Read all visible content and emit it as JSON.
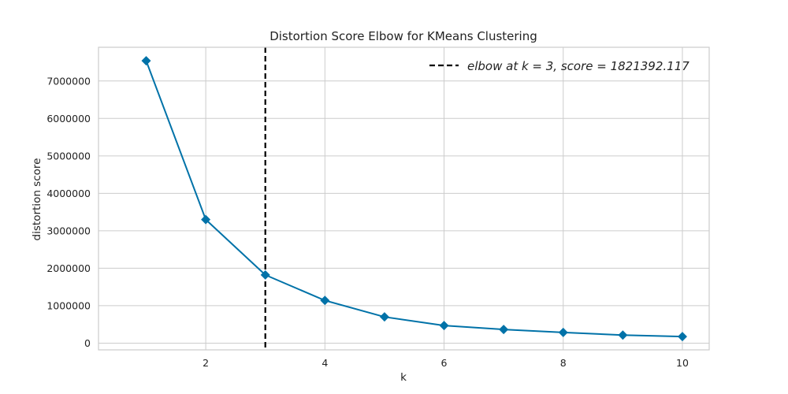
{
  "chart_data": {
    "type": "line",
    "title": "Distortion Score Elbow for KMeans Clustering",
    "xlabel": "k",
    "ylabel": "distortion score",
    "x": [
      1,
      2,
      3,
      4,
      5,
      6,
      7,
      8,
      9,
      10
    ],
    "series": [
      {
        "values": [
          7540000,
          3300000,
          1821392.117,
          1140000,
          700000,
          470000,
          365000,
          285000,
          215000,
          175000
        ],
        "color": "#0072a8",
        "marker": "diamond"
      }
    ],
    "xlim": [
      0.2,
      10.45
    ],
    "ylim": [
      -180000,
      7900000
    ],
    "xticks": [
      2,
      4,
      6,
      8,
      10
    ],
    "xtick_labels": [
      "2",
      "4",
      "6",
      "8",
      "10"
    ],
    "yticks": [
      0,
      1000000,
      2000000,
      3000000,
      4000000,
      5000000,
      6000000,
      7000000
    ],
    "ytick_labels": [
      "0",
      "1000000",
      "2000000",
      "3000000",
      "4000000",
      "5000000",
      "6000000",
      "7000000"
    ],
    "grid": true,
    "elbow": {
      "x": 3,
      "color": "#000000",
      "style": "dashed",
      "legend_label": "elbow at k = 3, score = 1821392.117"
    },
    "legend_position": "top-right"
  }
}
